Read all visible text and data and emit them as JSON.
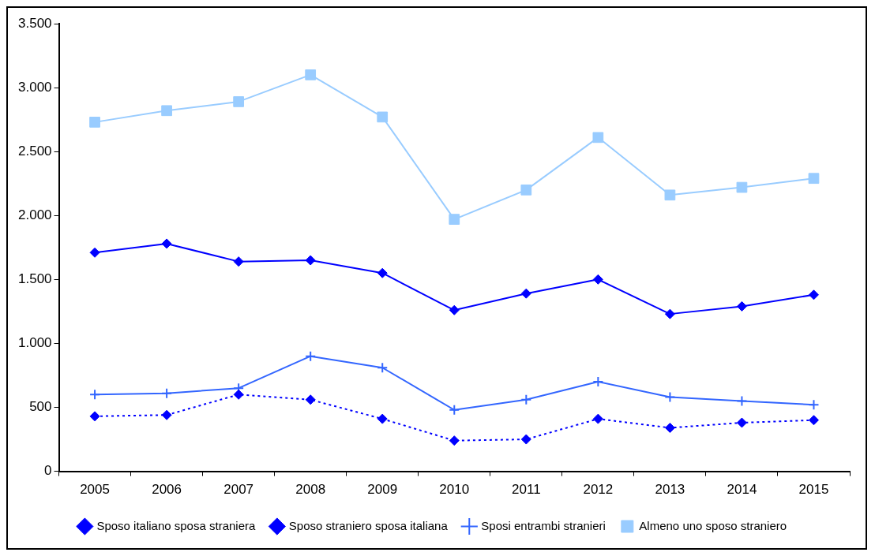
{
  "chart_data": {
    "type": "line",
    "categories": [
      "2005",
      "2006",
      "2007",
      "2008",
      "2009",
      "2010",
      "2011",
      "2012",
      "2013",
      "2014",
      "2015"
    ],
    "series": [
      {
        "name": "Sposo italiano sposa straniera",
        "color": "#0000ff",
        "marker": "diamond",
        "line_style": "solid",
        "values": [
          1710,
          1780,
          1640,
          1650,
          1550,
          1260,
          1390,
          1500,
          1230,
          1290,
          1380
        ]
      },
      {
        "name": "Sposo straniero sposa italiana",
        "color": "#0000ff",
        "marker": "diamond",
        "line_style": "dotted",
        "values": [
          430,
          440,
          600,
          560,
          410,
          240,
          250,
          410,
          340,
          380,
          400
        ]
      },
      {
        "name": "Sposi entrambi stranieri",
        "color": "#3366ff",
        "marker": "cross",
        "line_style": "solid",
        "values": [
          600,
          610,
          650,
          900,
          810,
          480,
          560,
          700,
          580,
          550,
          520
        ]
      },
      {
        "name": "Almeno uno sposo straniero",
        "color": "#99ccff",
        "marker": "square",
        "line_style": "solid",
        "values": [
          2730,
          2820,
          2890,
          3100,
          2770,
          1970,
          2200,
          2610,
          2160,
          2220,
          2290
        ]
      }
    ],
    "ylim": [
      0,
      3500
    ],
    "yticks": [
      0,
      500,
      {
        "value": 1000,
        "label": "1.000"
      },
      {
        "value": 1500,
        "label": "1.500"
      },
      {
        "value": 2000,
        "label": "2.000"
      },
      {
        "value": 2500,
        "label": "2.500"
      },
      {
        "value": 3000,
        "label": "3.000"
      },
      {
        "value": 3500,
        "label": "3.500"
      }
    ],
    "grid": false,
    "legend": "bottom"
  }
}
